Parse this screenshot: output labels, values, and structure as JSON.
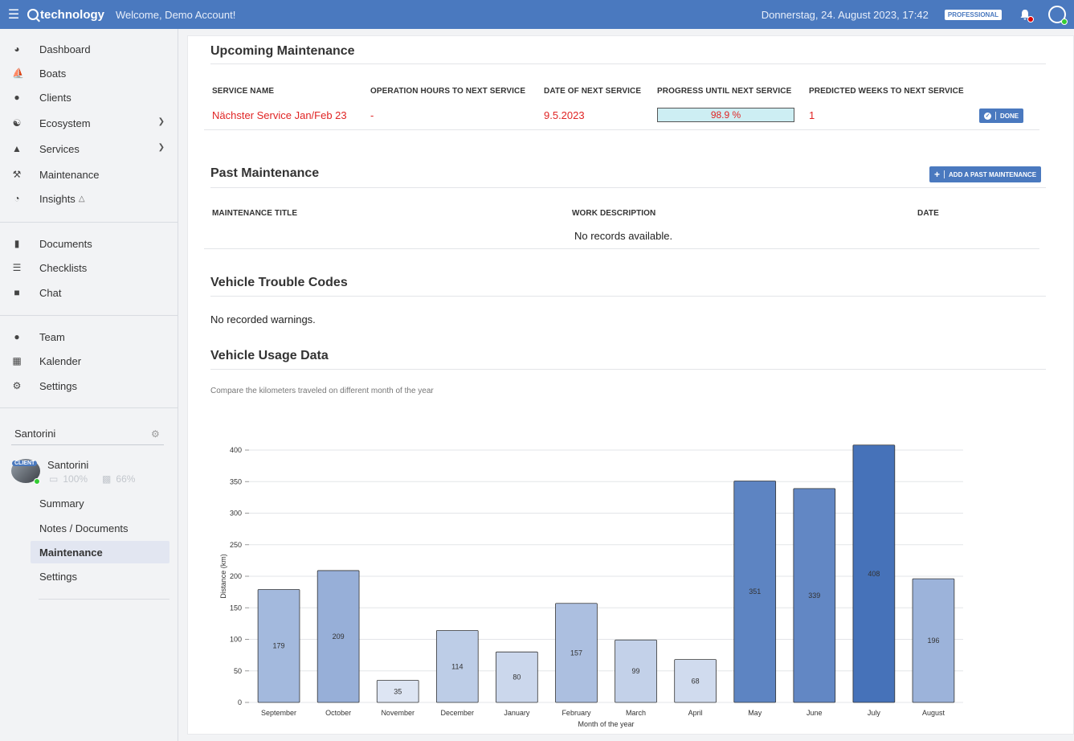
{
  "header": {
    "brand": "technology",
    "welcome": "Welcome, Demo Account!",
    "datetime": "Donnerstag, 24. August 2023, 17:42",
    "plan": "PROFESSIONAL"
  },
  "sidebar": {
    "main_items": [
      {
        "label": "Dashboard",
        "icon": "dashboard-icon"
      },
      {
        "label": "Boats",
        "icon": "ship-icon"
      },
      {
        "label": "Clients",
        "icon": "users-icon"
      },
      {
        "label": "Ecosystem",
        "icon": "handshake-icon"
      },
      {
        "label": "Services",
        "icon": "bell-service-icon"
      },
      {
        "label": "Maintenance",
        "icon": "wrench-icon"
      },
      {
        "label": "Insights",
        "icon": "pie-chart-icon"
      }
    ],
    "doc_items": [
      {
        "label": "Documents",
        "icon": "file-icon"
      },
      {
        "label": "Checklists",
        "icon": "checklist-icon"
      },
      {
        "label": "Chat",
        "icon": "chat-icon"
      }
    ],
    "team_items": [
      {
        "label": "Team",
        "icon": "team-icon"
      },
      {
        "label": "Kalender",
        "icon": "calendar-icon"
      },
      {
        "label": "Settings",
        "icon": "gear-icon"
      }
    ],
    "boat_select": "Santorini",
    "boat": {
      "badge": "CLIENT",
      "name": "Santorini",
      "battery": "100%",
      "fuel": "66%"
    },
    "boat_menu": [
      "Summary",
      "Notes / Documents",
      "Maintenance",
      "Settings"
    ]
  },
  "upcoming": {
    "title": "Upcoming Maintenance",
    "headers": [
      "SERVICE NAME",
      "OPERATION HOURS TO NEXT SERVICE",
      "DATE OF NEXT SERVICE",
      "PROGRESS UNTIL NEXT SERVICE",
      "PREDICTED WEEKS TO NEXT SERVICE"
    ],
    "row": {
      "service": "Nächster Service Jan/Feb 23",
      "hours": "-",
      "date": "9.5.2023",
      "progress_label": "98.9 %",
      "progress": 98.9,
      "weeks": "1",
      "done_label": "DONE"
    }
  },
  "past": {
    "title": "Past Maintenance",
    "add_label": "ADD A PAST MAINTENANCE",
    "headers": [
      "MAINTENANCE TITLE",
      "WORK DESCRIPTION",
      "DATE"
    ],
    "empty": "No records available."
  },
  "trouble": {
    "title": "Vehicle Trouble Codes",
    "empty": "No recorded warnings."
  },
  "usage": {
    "title": "Vehicle Usage Data",
    "caption": "Compare the kilometers traveled on different month of the year"
  },
  "chart_data": {
    "type": "bar",
    "categories": [
      "September",
      "October",
      "November",
      "December",
      "January",
      "February",
      "March",
      "April",
      "May",
      "June",
      "July",
      "August"
    ],
    "values": [
      179,
      209,
      35,
      114,
      80,
      157,
      99,
      68,
      351,
      339,
      408,
      196
    ],
    "xlabel": "Month of the year",
    "ylabel": "Distance (km)",
    "ylim": [
      0,
      400
    ],
    "yticks": [
      0,
      50,
      100,
      150,
      200,
      250,
      300,
      350,
      400
    ],
    "grid": true,
    "colors": {
      "min": "#dde5f3",
      "max": "#4672b9",
      "stroke": "#333333"
    }
  }
}
